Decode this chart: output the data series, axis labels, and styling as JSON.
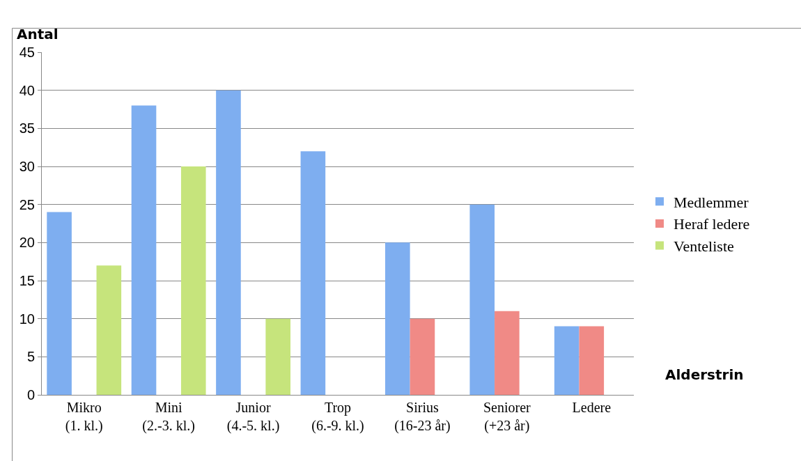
{
  "chart_data": {
    "type": "bar",
    "xlabel": "Alderstrin",
    "ylabel": "Antal",
    "categories": [
      "Mikro\n(1. kl.)",
      "Mini\n(2.-3. kl.)",
      "Junior\n(4.-5. kl.)",
      "Trop\n(6.-9. kl.)",
      "Sirius\n(16-23 år)",
      "Seniorer\n(+23 år)",
      "Ledere"
    ],
    "series": [
      {
        "name": "Medlemmer",
        "color": "#7eaef0",
        "values": [
          24,
          38,
          40,
          32,
          20,
          25,
          9
        ]
      },
      {
        "name": "Heraf ledere",
        "color": "#f08a86",
        "values": [
          null,
          null,
          null,
          null,
          10,
          11,
          9
        ]
      },
      {
        "name": "Venteliste",
        "color": "#c6e47c",
        "values": [
          17,
          30,
          10,
          null,
          null,
          null,
          null
        ]
      }
    ],
    "ylim": [
      0,
      45
    ],
    "yticks": [
      0,
      5,
      10,
      15,
      20,
      25,
      30,
      35,
      40,
      45
    ],
    "grid": "y",
    "legend": "right"
  }
}
